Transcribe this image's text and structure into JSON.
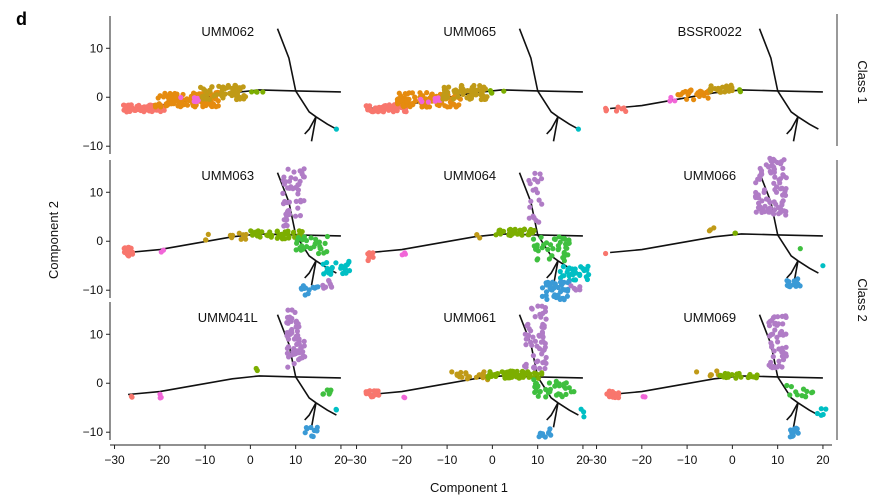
{
  "panel_letter": "d",
  "chart_data": {
    "type": "scatter",
    "xlabel": "Component 1",
    "ylabel": "Component 2",
    "xlim": [
      -31,
      22
    ],
    "ylim": [
      -12,
      17
    ],
    "xticks": [
      -30,
      -20,
      -10,
      0,
      10,
      20
    ],
    "xtick_labels": [
      "−30",
      "−20",
      "−10",
      "0",
      "10",
      "20"
    ],
    "yticks": [
      -10,
      0,
      10
    ],
    "ytick_labels": [
      "−10",
      "0",
      "10"
    ],
    "row_labels": [
      "Class 1",
      "Class 2"
    ],
    "colors": {
      "red": "#f8766d",
      "orange": "#e58b0e",
      "mustard": "#c09a17",
      "green": "#7cae00",
      "ltgreen": "#3fbf3f",
      "teal": "#00bfc4",
      "blue": "#3a9ad6",
      "purple": "#b07cc6",
      "magenta": "#f166d8",
      "trajectory": "#111111"
    },
    "trajectory": [
      [
        [
          -27,
          -2.3
        ],
        [
          -20,
          -1.7
        ],
        [
          -12,
          -0.4
        ],
        [
          -4,
          0.9
        ],
        [
          2,
          1.5
        ],
        [
          10,
          1.3
        ],
        [
          20,
          1.1
        ]
      ],
      [
        [
          10,
          1.3
        ],
        [
          8.5,
          8
        ],
        [
          6,
          14
        ]
      ],
      [
        [
          10,
          1.3
        ],
        [
          13,
          -3
        ],
        [
          14.5,
          -4
        ]
      ],
      [
        [
          14.5,
          -4
        ],
        [
          13.5,
          -9
        ]
      ],
      [
        [
          14.5,
          -4
        ],
        [
          17,
          -5.5
        ],
        [
          19,
          -6.5
        ]
      ],
      [
        [
          14.5,
          -4
        ],
        [
          13,
          -6.5
        ],
        [
          12,
          -7.5
        ]
      ]
    ],
    "panels": [
      {
        "title": "UMM062",
        "profile": "class1_dense"
      },
      {
        "title": "UMM065",
        "profile": "class1_dense"
      },
      {
        "title": "BSSR0022",
        "profile": "class1_sparse"
      },
      {
        "title": "UMM063",
        "profile": "class2_full"
      },
      {
        "title": "UMM064",
        "profile": "class2_right"
      },
      {
        "title": "UMM066",
        "profile": "class2_purple"
      },
      {
        "title": "UMM041L",
        "profile": "class2_mixed"
      },
      {
        "title": "UMM061",
        "profile": "class2_mid"
      },
      {
        "title": "UMM069",
        "profile": "class2_late"
      }
    ],
    "series_clusters": {
      "class1_dense": [
        {
          "color": "red",
          "n": 70,
          "x": [
            -28,
            -19
          ],
          "y": [
            -3,
            -1.5
          ]
        },
        {
          "color": "orange",
          "n": 110,
          "x": [
            -21,
            -7
          ],
          "y": [
            -2,
            1
          ]
        },
        {
          "color": "magenta",
          "n": 8,
          "x": [
            -16,
            -11
          ],
          "y": [
            -1,
            0
          ]
        },
        {
          "color": "mustard",
          "n": 60,
          "x": [
            -11,
            -1
          ],
          "y": [
            -0.5,
            2.5
          ]
        },
        {
          "color": "green",
          "n": 4,
          "x": [
            -1,
            3
          ],
          "y": [
            0.5,
            1.5
          ]
        },
        {
          "color": "teal",
          "n": 1,
          "x": [
            19,
            19
          ],
          "y": [
            -6.5,
            -6.5
          ]
        }
      ],
      "class1_sparse": [
        {
          "color": "red",
          "n": 8,
          "x": [
            -28,
            -22
          ],
          "y": [
            -3,
            -2
          ]
        },
        {
          "color": "magenta",
          "n": 3,
          "x": [
            -14,
            -12
          ],
          "y": [
            -1,
            0
          ]
        },
        {
          "color": "orange",
          "n": 25,
          "x": [
            -12,
            -5
          ],
          "y": [
            -0.5,
            1.5
          ]
        },
        {
          "color": "mustard",
          "n": 25,
          "x": [
            -5,
            0
          ],
          "y": [
            1,
            2.5
          ]
        },
        {
          "color": "green",
          "n": 2,
          "x": [
            0,
            2
          ],
          "y": [
            1,
            2
          ]
        }
      ],
      "class2_full": [
        {
          "color": "red",
          "n": 30,
          "x": [
            -28,
            -26
          ],
          "y": [
            -3,
            -1.2
          ]
        },
        {
          "color": "magenta",
          "n": 2,
          "x": [
            -20,
            -19
          ],
          "y": [
            -2.5,
            -1.8
          ]
        },
        {
          "color": "mustard",
          "n": 12,
          "x": [
            -10,
            0
          ],
          "y": [
            0,
            2
          ]
        },
        {
          "color": "green",
          "n": 40,
          "x": [
            0,
            12
          ],
          "y": [
            0.5,
            2.2
          ]
        },
        {
          "color": "ltgreen",
          "n": 30,
          "x": [
            10,
            17
          ],
          "y": [
            -2.5,
            1
          ]
        },
        {
          "color": "purple",
          "n": 50,
          "x": [
            7,
            12
          ],
          "y": [
            3,
            15
          ]
        },
        {
          "color": "teal",
          "n": 25,
          "x": [
            16,
            22
          ],
          "y": [
            -7,
            -4
          ]
        },
        {
          "color": "blue",
          "n": 12,
          "x": [
            11,
            15
          ],
          "y": [
            -11,
            -9
          ]
        },
        {
          "color": "purple",
          "n": 8,
          "x": [
            16,
            18
          ],
          "y": [
            -10,
            -8
          ]
        }
      ],
      "class2_right": [
        {
          "color": "red",
          "n": 8,
          "x": [
            -28,
            -26
          ],
          "y": [
            -4,
            -2
          ]
        },
        {
          "color": "magenta",
          "n": 3,
          "x": [
            -20,
            -19
          ],
          "y": [
            -3,
            -2
          ]
        },
        {
          "color": "mustard",
          "n": 2,
          "x": [
            -4,
            -2
          ],
          "y": [
            0.5,
            1.5
          ]
        },
        {
          "color": "green",
          "n": 35,
          "x": [
            0,
            10
          ],
          "y": [
            1,
            2.5
          ]
        },
        {
          "color": "ltgreen",
          "n": 40,
          "x": [
            9,
            17
          ],
          "y": [
            -4,
            1
          ]
        },
        {
          "color": "purple",
          "n": 20,
          "x": [
            8,
            11
          ],
          "y": [
            3,
            15
          ]
        },
        {
          "color": "teal",
          "n": 30,
          "x": [
            15,
            22
          ],
          "y": [
            -8,
            -5
          ]
        },
        {
          "color": "blue",
          "n": 45,
          "x": [
            11,
            17
          ],
          "y": [
            -12,
            -8
          ]
        },
        {
          "color": "purple",
          "n": 6,
          "x": [
            17,
            20
          ],
          "y": [
            -10,
            -9
          ]
        }
      ],
      "class2_purple": [
        {
          "color": "red",
          "n": 1,
          "x": [
            -28,
            -28
          ],
          "y": [
            -2.5,
            -2.5
          ]
        },
        {
          "color": "mustard",
          "n": 3,
          "x": [
            -6,
            -3
          ],
          "y": [
            1.5,
            3
          ]
        },
        {
          "color": "green",
          "n": 2,
          "x": [
            0,
            2
          ],
          "y": [
            1.5,
            2
          ]
        },
        {
          "color": "purple",
          "n": 90,
          "x": [
            5,
            12
          ],
          "y": [
            5,
            17
          ]
        },
        {
          "color": "ltgreen",
          "n": 1,
          "x": [
            15,
            15
          ],
          "y": [
            -1.5,
            -1.5
          ]
        },
        {
          "color": "blue",
          "n": 15,
          "x": [
            12,
            15
          ],
          "y": [
            -9.5,
            -7.5
          ]
        },
        {
          "color": "teal",
          "n": 1,
          "x": [
            20,
            20
          ],
          "y": [
            -5,
            -5
          ]
        }
      ],
      "class2_mixed": [
        {
          "color": "red",
          "n": 2,
          "x": [
            -27,
            -26
          ],
          "y": [
            -3,
            -2
          ]
        },
        {
          "color": "magenta",
          "n": 3,
          "x": [
            -20,
            -19
          ],
          "y": [
            -3,
            -2
          ]
        },
        {
          "color": "green",
          "n": 2,
          "x": [
            1,
            2
          ],
          "y": [
            2,
            4
          ]
        },
        {
          "color": "purple",
          "n": 60,
          "x": [
            8,
            12
          ],
          "y": [
            3,
            15
          ]
        },
        {
          "color": "ltgreen",
          "n": 8,
          "x": [
            15,
            18
          ],
          "y": [
            -2.5,
            -1
          ]
        },
        {
          "color": "teal",
          "n": 2,
          "x": [
            18,
            20
          ],
          "y": [
            -6,
            -5
          ]
        },
        {
          "color": "blue",
          "n": 10,
          "x": [
            12,
            15
          ],
          "y": [
            -11,
            -9
          ]
        }
      ],
      "class2_mid": [
        {
          "color": "red",
          "n": 15,
          "x": [
            -28,
            -25
          ],
          "y": [
            -3,
            -1.5
          ]
        },
        {
          "color": "magenta",
          "n": 2,
          "x": [
            -20,
            -19
          ],
          "y": [
            -3,
            -2.5
          ]
        },
        {
          "color": "mustard",
          "n": 20,
          "x": [
            -9,
            -1
          ],
          "y": [
            0.5,
            2.5
          ]
        },
        {
          "color": "green",
          "n": 60,
          "x": [
            -1,
            11
          ],
          "y": [
            1,
            2.5
          ]
        },
        {
          "color": "ltgreen",
          "n": 35,
          "x": [
            9,
            18
          ],
          "y": [
            -3,
            1
          ]
        },
        {
          "color": "purple",
          "n": 60,
          "x": [
            7,
            12
          ],
          "y": [
            3,
            16
          ]
        },
        {
          "color": "teal",
          "n": 3,
          "x": [
            18,
            21
          ],
          "y": [
            -7,
            -5
          ]
        },
        {
          "color": "blue",
          "n": 10,
          "x": [
            10,
            13
          ],
          "y": [
            -11,
            -9
          ]
        }
      ],
      "class2_late": [
        {
          "color": "red",
          "n": 20,
          "x": [
            -28,
            -25
          ],
          "y": [
            -3,
            -1.5
          ]
        },
        {
          "color": "magenta",
          "n": 2,
          "x": [
            -20,
            -19
          ],
          "y": [
            -3,
            -2.5
          ]
        },
        {
          "color": "mustard",
          "n": 6,
          "x": [
            -8,
            -3
          ],
          "y": [
            1.5,
            2.5
          ]
        },
        {
          "color": "green",
          "n": 25,
          "x": [
            -3,
            7
          ],
          "y": [
            1,
            2
          ]
        },
        {
          "color": "purple",
          "n": 50,
          "x": [
            8,
            12
          ],
          "y": [
            3,
            14
          ]
        },
        {
          "color": "ltgreen",
          "n": 12,
          "x": [
            12,
            18
          ],
          "y": [
            -3,
            0
          ]
        },
        {
          "color": "teal",
          "n": 5,
          "x": [
            17,
            21
          ],
          "y": [
            -7,
            -5
          ]
        },
        {
          "color": "blue",
          "n": 12,
          "x": [
            12,
            15
          ],
          "y": [
            -11,
            -9
          ]
        }
      ]
    }
  }
}
